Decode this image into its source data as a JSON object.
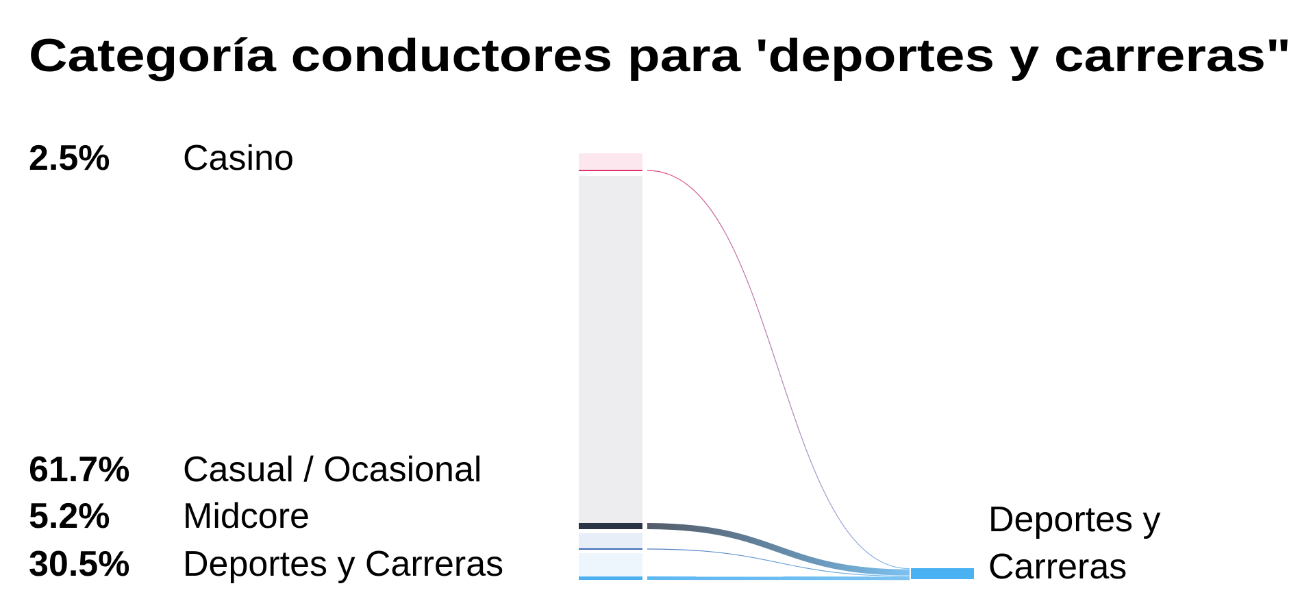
{
  "chart_data": {
    "type": "sankey",
    "title": "Categoría conductores para 'deportes y carreras\"",
    "target": {
      "name_line1": "Deportes y",
      "name_line2": "Carreras",
      "color": "#4AB1F2"
    },
    "sources": [
      {
        "name": "Casino",
        "pct_label": "2.5%",
        "value": 2.5,
        "bar_color": "#FDE7EF",
        "flow_color": "#E2336F"
      },
      {
        "name": "Casual / Ocasional",
        "pct_label": "61.7%",
        "value": 61.7,
        "bar_color": "#EDEDEF",
        "flow_color": "#2A3444"
      },
      {
        "name": "Midcore",
        "pct_label": "5.2%",
        "value": 5.2,
        "bar_color": "#E8EEF8",
        "flow_color": "#3B6BB5"
      },
      {
        "name": "Deportes y Carreras",
        "pct_label": "30.5%",
        "value": 30.5,
        "bar_color": "#EEF6FD",
        "flow_color": "#4AB0F0"
      }
    ]
  }
}
